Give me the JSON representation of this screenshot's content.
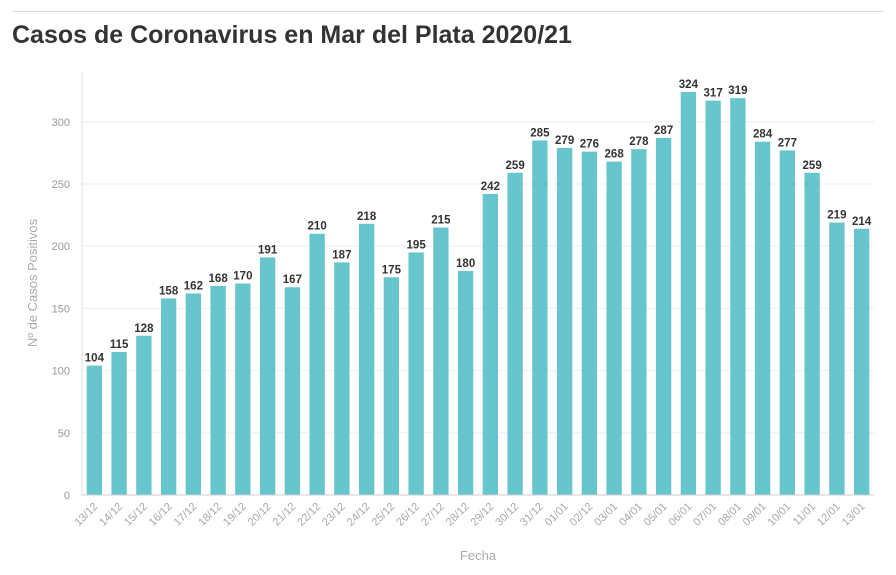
{
  "chart_data": {
    "type": "bar",
    "title": "Casos de Coronavirus en Mar del Plata 2020/21",
    "xlabel": "Fecha",
    "ylabel": "Nº de Casos Positivos",
    "ylim": [
      0,
      340
    ],
    "yticks": [
      0,
      50,
      100,
      150,
      200,
      250,
      300
    ],
    "grid": true,
    "bar_color": "#67c6cd",
    "categories": [
      "13/12",
      "14/12",
      "15/12",
      "16/12",
      "17/12",
      "18/12",
      "19/12",
      "20/12",
      "21/12",
      "22/12",
      "23/12",
      "24/12",
      "25/12",
      "26/12",
      "27/12",
      "28/12",
      "29/12",
      "30/12",
      "31/12",
      "01/01",
      "02/12",
      "03/01",
      "04/01",
      "05/01",
      "06/01",
      "07/01",
      "08/01",
      "09/01",
      "10/01",
      "11/01",
      "12/01",
      "13/01"
    ],
    "values": [
      104,
      115,
      128,
      158,
      162,
      168,
      170,
      191,
      167,
      210,
      187,
      218,
      175,
      195,
      215,
      180,
      242,
      259,
      285,
      279,
      276,
      268,
      278,
      287,
      324,
      317,
      319,
      284,
      277,
      259,
      219,
      214
    ]
  }
}
